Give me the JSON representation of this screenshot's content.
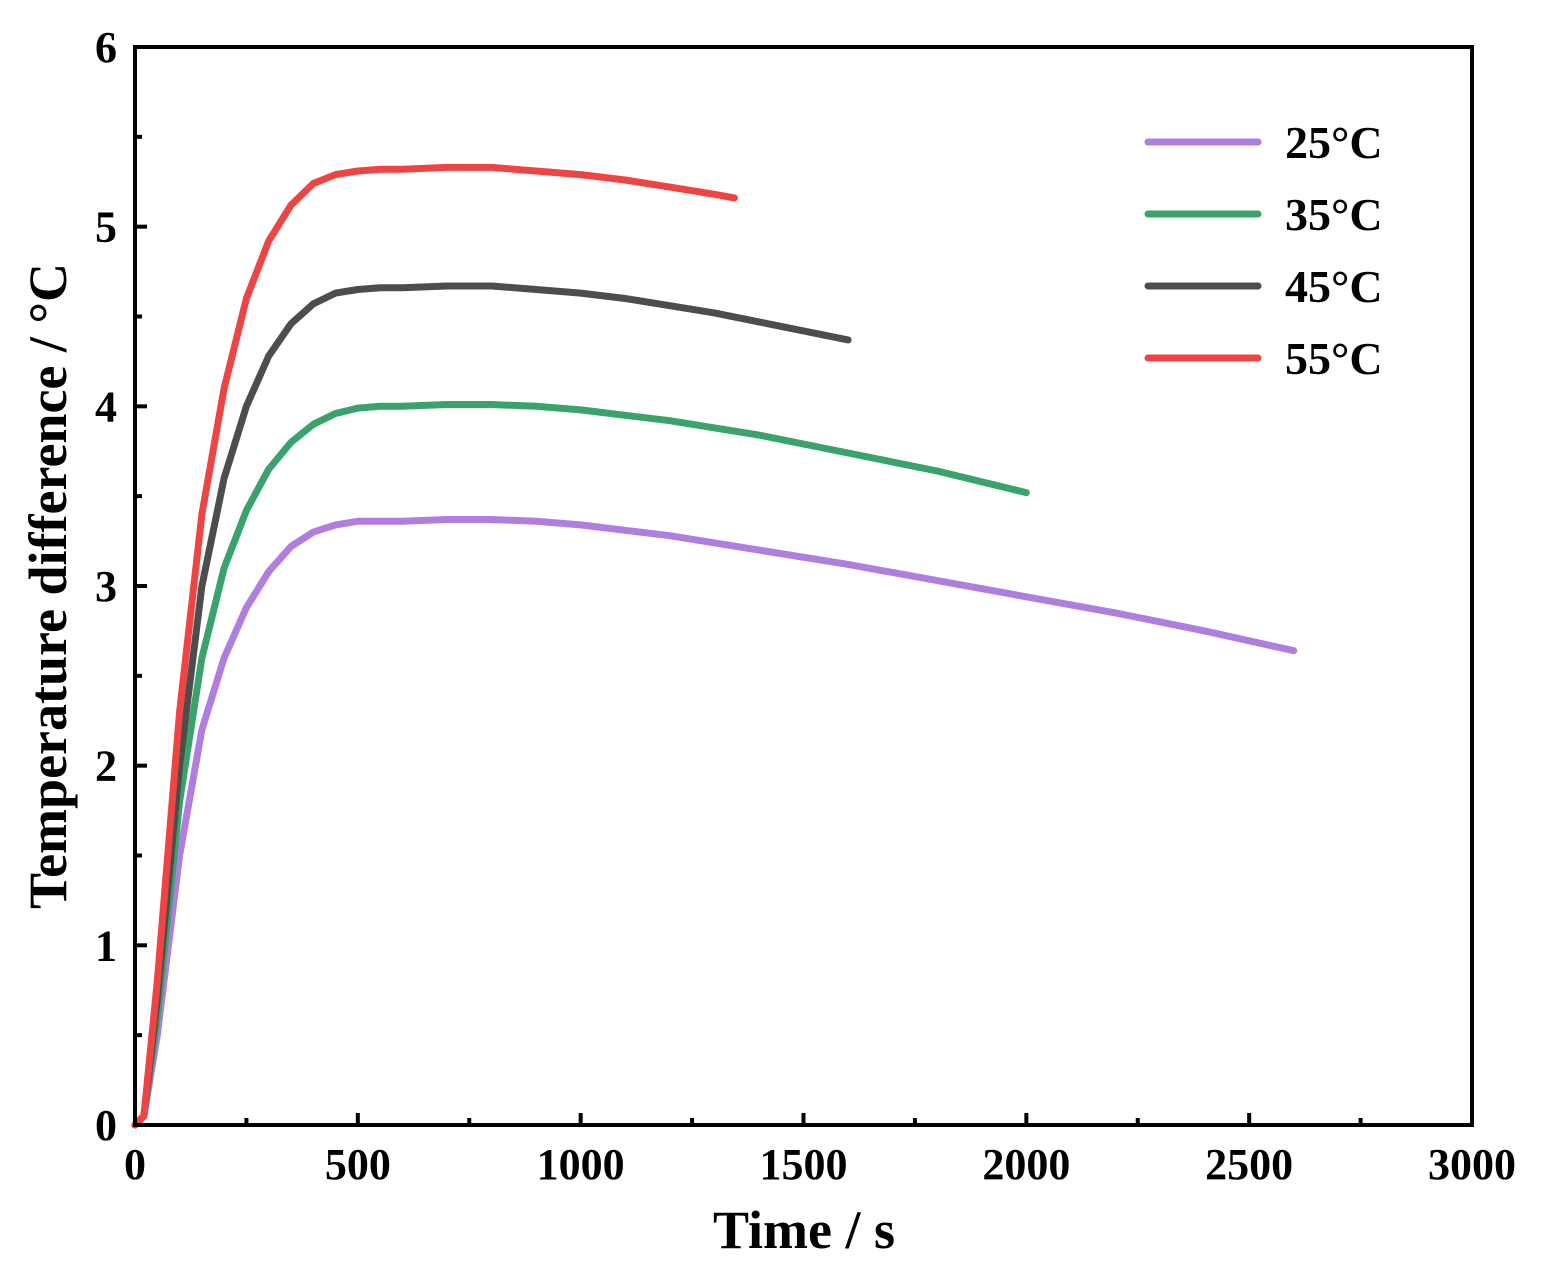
{
  "chart_data": {
    "type": "line",
    "title": "",
    "xlabel": "Time / s",
    "ylabel": "Temperature difference / °C",
    "xlim": [
      0,
      3000
    ],
    "ylim": [
      0,
      6
    ],
    "xticks": [
      0,
      500,
      1000,
      1500,
      2000,
      2500,
      3000
    ],
    "yticks": [
      0,
      1,
      2,
      3,
      4,
      5,
      6
    ],
    "x_minor_step": 250,
    "y_minor_step": 0.5,
    "grid": false,
    "legend_position": "top-right",
    "series": [
      {
        "name": "25°C",
        "color": "#b07ee0",
        "points": [
          [
            0,
            0
          ],
          [
            20,
            0.05
          ],
          [
            50,
            0.5
          ],
          [
            100,
            1.5
          ],
          [
            150,
            2.2
          ],
          [
            200,
            2.6
          ],
          [
            250,
            2.88
          ],
          [
            300,
            3.08
          ],
          [
            350,
            3.22
          ],
          [
            400,
            3.3
          ],
          [
            450,
            3.34
          ],
          [
            500,
            3.36
          ],
          [
            550,
            3.36
          ],
          [
            600,
            3.36
          ],
          [
            700,
            3.37
          ],
          [
            800,
            3.37
          ],
          [
            900,
            3.36
          ],
          [
            1000,
            3.34
          ],
          [
            1200,
            3.28
          ],
          [
            1400,
            3.2
          ],
          [
            1600,
            3.12
          ],
          [
            1800,
            3.03
          ],
          [
            2000,
            2.94
          ],
          [
            2200,
            2.85
          ],
          [
            2400,
            2.75
          ],
          [
            2600,
            2.64
          ]
        ]
      },
      {
        "name": "35°C",
        "color": "#3aa36b",
        "points": [
          [
            0,
            0
          ],
          [
            20,
            0.05
          ],
          [
            50,
            0.6
          ],
          [
            100,
            1.8
          ],
          [
            150,
            2.6
          ],
          [
            200,
            3.1
          ],
          [
            250,
            3.42
          ],
          [
            300,
            3.65
          ],
          [
            350,
            3.8
          ],
          [
            400,
            3.9
          ],
          [
            450,
            3.96
          ],
          [
            500,
            3.99
          ],
          [
            550,
            4.0
          ],
          [
            600,
            4.0
          ],
          [
            700,
            4.01
          ],
          [
            800,
            4.01
          ],
          [
            900,
            4.0
          ],
          [
            1000,
            3.98
          ],
          [
            1200,
            3.92
          ],
          [
            1400,
            3.84
          ],
          [
            1600,
            3.74
          ],
          [
            1800,
            3.64
          ],
          [
            2000,
            3.52
          ]
        ]
      },
      {
        "name": "45°C",
        "color": "#4d4d4d",
        "points": [
          [
            0,
            0
          ],
          [
            20,
            0.05
          ],
          [
            50,
            0.7
          ],
          [
            100,
            2.0
          ],
          [
            150,
            3.0
          ],
          [
            200,
            3.6
          ],
          [
            250,
            4.0
          ],
          [
            300,
            4.28
          ],
          [
            350,
            4.46
          ],
          [
            400,
            4.57
          ],
          [
            450,
            4.63
          ],
          [
            500,
            4.65
          ],
          [
            550,
            4.66
          ],
          [
            600,
            4.66
          ],
          [
            700,
            4.67
          ],
          [
            800,
            4.67
          ],
          [
            900,
            4.65
          ],
          [
            1000,
            4.63
          ],
          [
            1100,
            4.6
          ],
          [
            1200,
            4.56
          ],
          [
            1300,
            4.52
          ],
          [
            1400,
            4.47
          ],
          [
            1500,
            4.42
          ],
          [
            1600,
            4.37
          ]
        ]
      },
      {
        "name": "55°C",
        "color": "#ee4444",
        "points": [
          [
            0,
            0
          ],
          [
            20,
            0.05
          ],
          [
            50,
            0.8
          ],
          [
            100,
            2.3
          ],
          [
            150,
            3.4
          ],
          [
            200,
            4.1
          ],
          [
            250,
            4.6
          ],
          [
            300,
            4.92
          ],
          [
            350,
            5.12
          ],
          [
            400,
            5.24
          ],
          [
            450,
            5.29
          ],
          [
            500,
            5.31
          ],
          [
            550,
            5.32
          ],
          [
            600,
            5.32
          ],
          [
            700,
            5.33
          ],
          [
            800,
            5.33
          ],
          [
            900,
            5.31
          ],
          [
            1000,
            5.29
          ],
          [
            1100,
            5.26
          ],
          [
            1200,
            5.22
          ],
          [
            1300,
            5.18
          ],
          [
            1345,
            5.16
          ]
        ]
      }
    ]
  }
}
